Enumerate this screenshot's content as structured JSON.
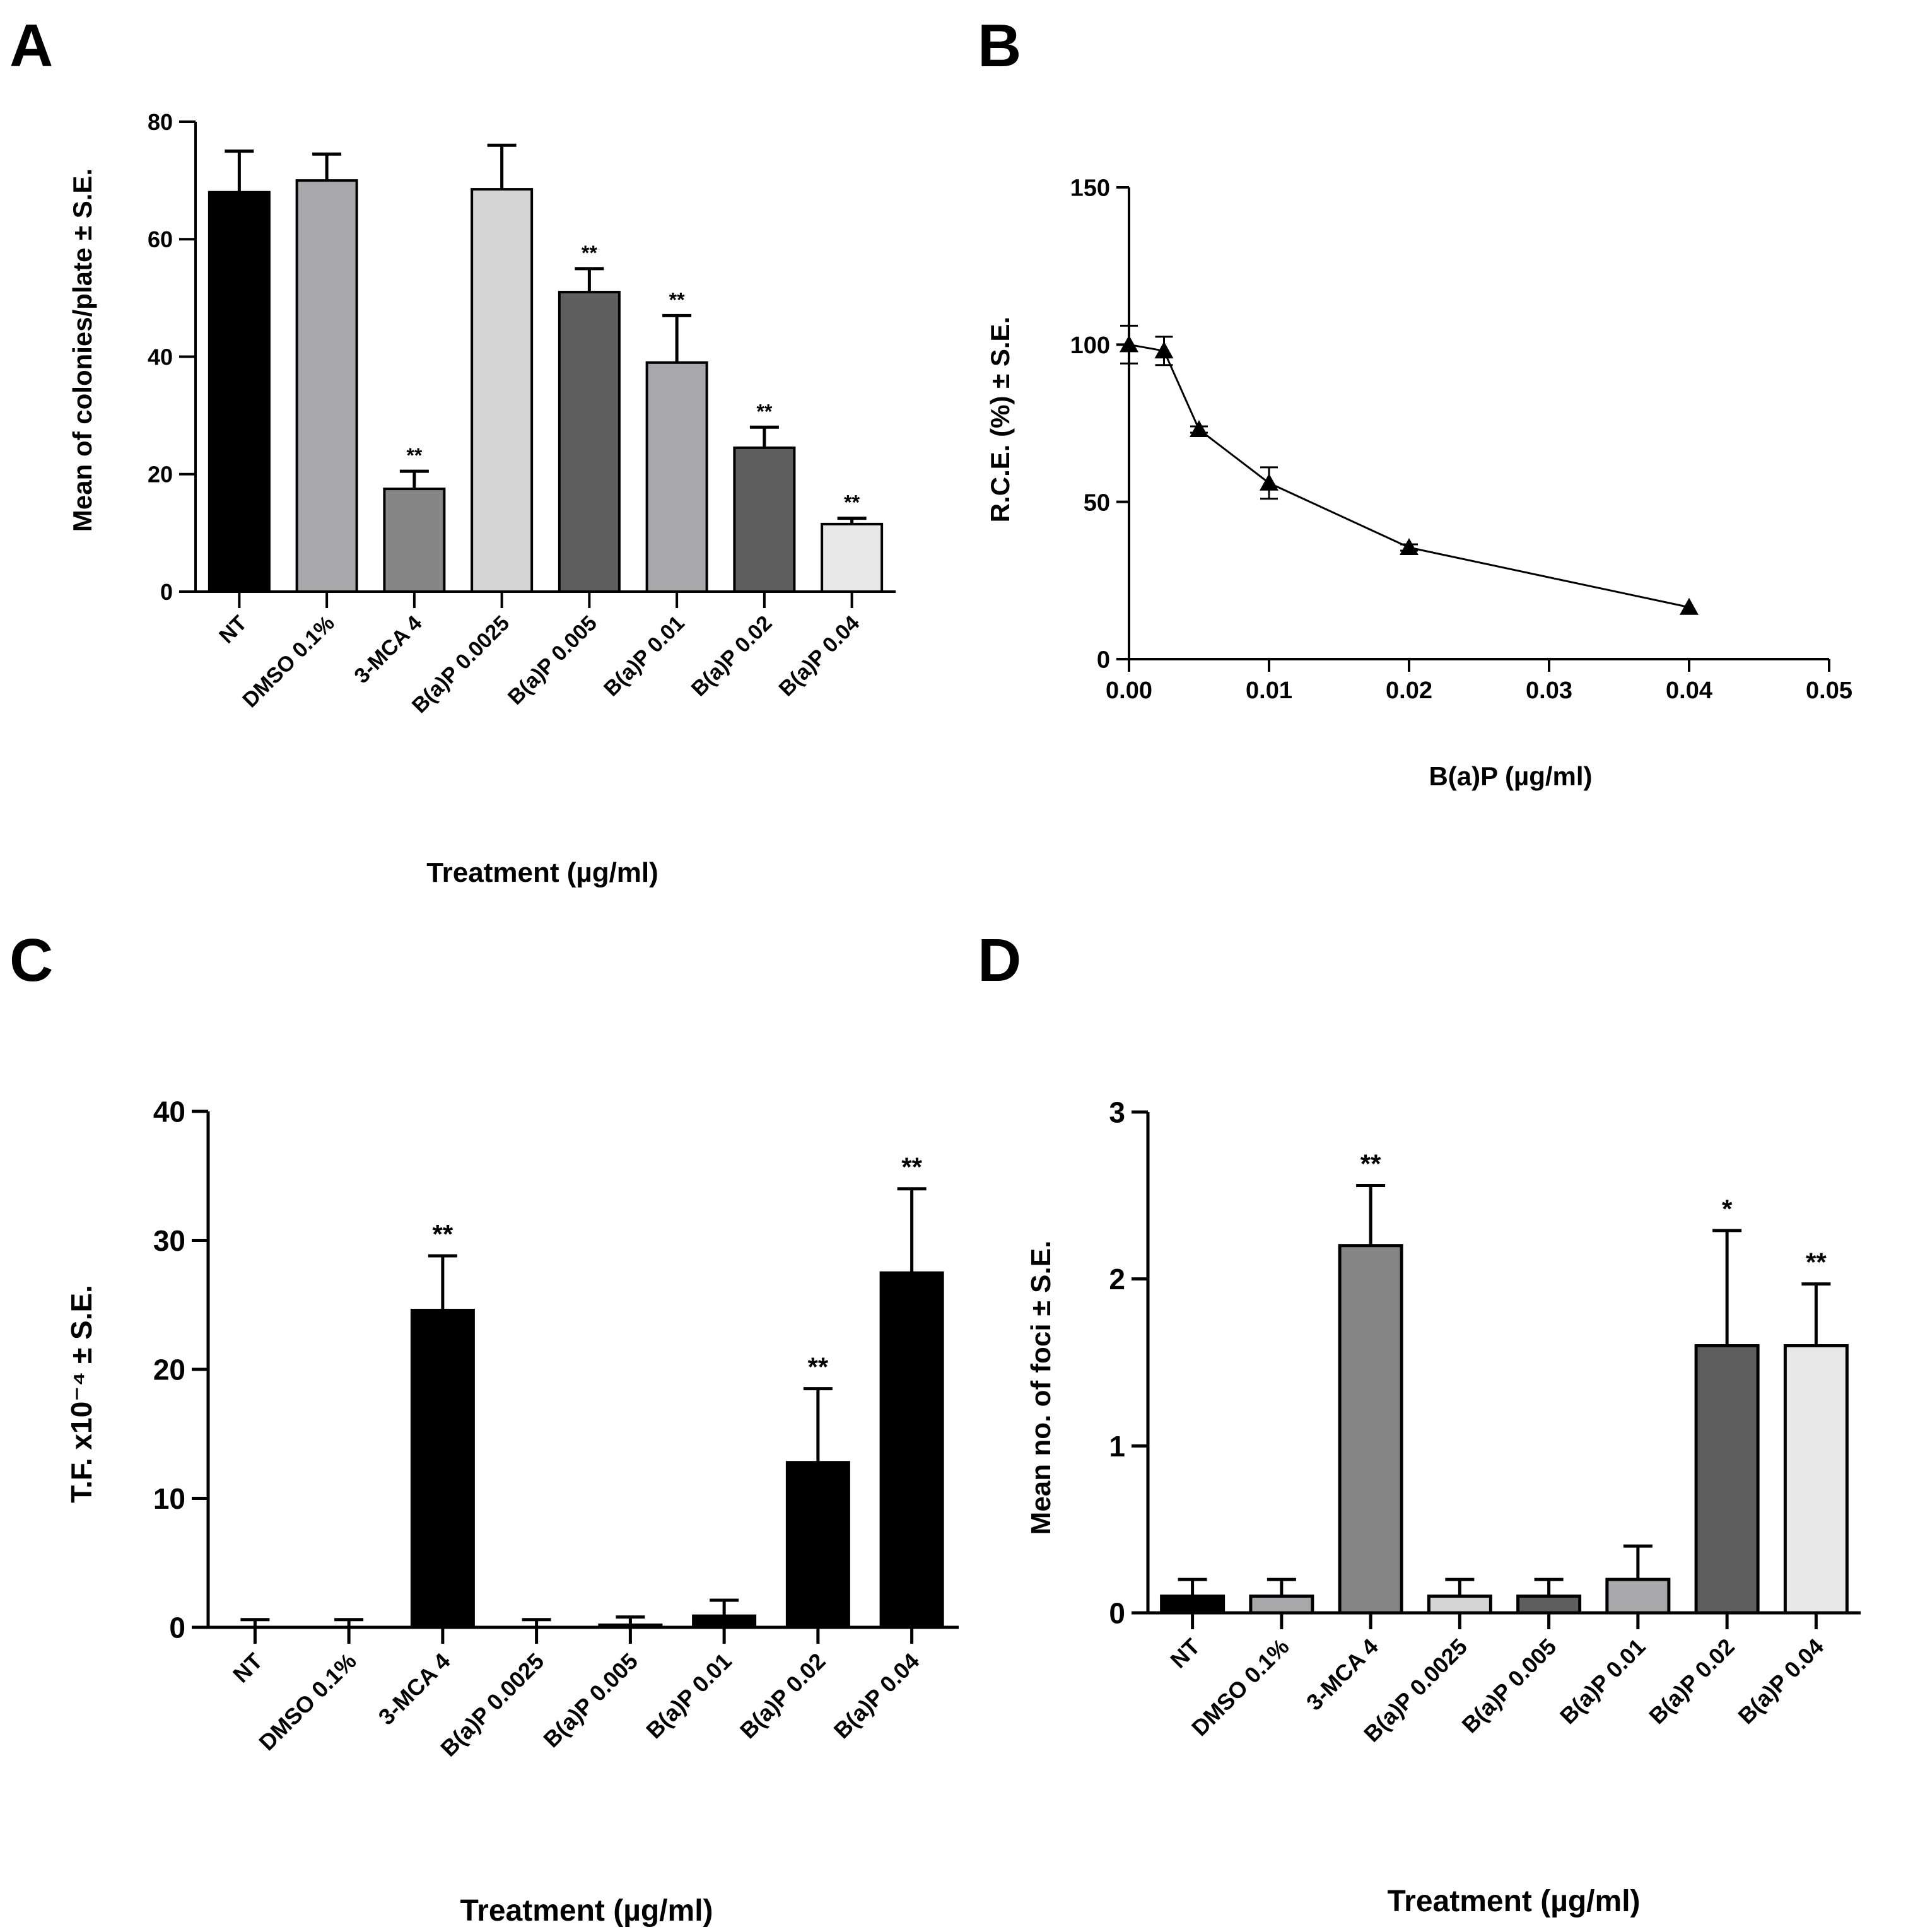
{
  "panels": [
    "A",
    "B",
    "C",
    "D"
  ],
  "chart_data": [
    {
      "type": "bar",
      "panel": "A",
      "ylabel": "Mean of colonies/plate ± S.E.",
      "xlabel": "Treatment  (µg/ml)",
      "ylim": [
        0,
        80
      ],
      "yticks": [
        0,
        20,
        40,
        60,
        80
      ],
      "categories": [
        "NT",
        "DMSO 0.1%",
        "3-MCA 4",
        "B(a)P 0.0025",
        "B(a)P 0.005",
        "B(a)P 0.01",
        "B(a)P 0.02",
        "B(a)P 0.04"
      ],
      "values": [
        68,
        70,
        17.5,
        68.5,
        51,
        39,
        24.5,
        11.5
      ],
      "errors": [
        7,
        4.5,
        3,
        7.5,
        4,
        8,
        3.5,
        1
      ],
      "colors": [
        "#000000",
        "#a8a8aa",
        "#858585",
        "#d4d4d4",
        "#5e5e5e",
        "#a8a8aa",
        "#5e5e5e",
        "#e8e8e8"
      ],
      "annotations": [
        "",
        "",
        "**",
        "",
        "**",
        "**",
        "**",
        "**"
      ]
    },
    {
      "type": "line",
      "panel": "B",
      "ylabel": "R.C.E. (%) ± S.E.",
      "xlabel": "B(a)P (µg/ml)",
      "xlim": [
        0,
        0.05
      ],
      "ylim": [
        0,
        150
      ],
      "xticks": [
        "0.00",
        "0.01",
        "0.02",
        "0.03",
        "0.04",
        "0.05"
      ],
      "yticks": [
        0,
        50,
        100,
        150
      ],
      "x": [
        0,
        0.0025,
        0.005,
        0.01,
        0.02,
        0.04
      ],
      "y": [
        100,
        98,
        73,
        56,
        35.5,
        16.5
      ],
      "errors": [
        6,
        4.5,
        1,
        5,
        1,
        0.5
      ]
    },
    {
      "type": "bar",
      "panel": "C",
      "ylabel": "T.F. x10⁻⁴ ± S.E.",
      "xlabel": "Treatment (µg/ml)",
      "ylim": [
        0,
        40
      ],
      "yticks": [
        0,
        10,
        20,
        30,
        40
      ],
      "categories": [
        "NT",
        "DMSO 0.1%",
        "3-MCA 4",
        "B(a)P 0.0025",
        "B(a)P 0.005",
        "B(a)P 0.01",
        "B(a)P 0.02",
        "B(a)P 0.04"
      ],
      "values": [
        0,
        0,
        24.6,
        0,
        0.2,
        0.9,
        12.8,
        27.5
      ],
      "errors": [
        0.6,
        0.6,
        4.2,
        0.6,
        0.6,
        1.2,
        5.7,
        6.5
      ],
      "colors": [
        "#000000",
        "#000000",
        "#000000",
        "#000000",
        "#000000",
        "#000000",
        "#000000",
        "#000000"
      ],
      "annotations": [
        "",
        "",
        "**",
        "",
        "",
        "",
        "**",
        "**"
      ]
    },
    {
      "type": "bar",
      "panel": "D",
      "ylabel": "Mean no. of foci ± S.E.",
      "xlabel": "Treatment  (µg/ml)",
      "ylim": [
        0,
        3
      ],
      "yticks": [
        0,
        1,
        2,
        3
      ],
      "categories": [
        "NT",
        "DMSO 0.1%",
        "3-MCA 4",
        "B(a)P 0.0025",
        "B(a)P 0.005",
        "B(a)P 0.01",
        "B(a)P 0.02",
        "B(a)P 0.04"
      ],
      "values": [
        0.1,
        0.1,
        2.2,
        0.1,
        0.1,
        0.2,
        1.6,
        1.6
      ],
      "errors": [
        0.1,
        0.1,
        0.36,
        0.1,
        0.1,
        0.2,
        0.69,
        0.37
      ],
      "colors": [
        "#000000",
        "#a8a8aa",
        "#858585",
        "#d4d4d4",
        "#5e5e5e",
        "#a8a8aa",
        "#5e5e5e",
        "#e8e8e8"
      ],
      "annotations": [
        "",
        "",
        "**",
        "",
        "",
        "",
        "*",
        "**"
      ]
    }
  ]
}
